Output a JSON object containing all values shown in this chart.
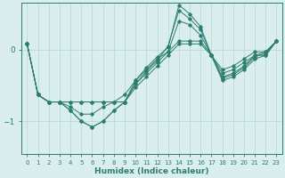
{
  "xlabel": "Humidex (Indice chaleur)",
  "ylabel": "",
  "background_color": "#daeeed",
  "line_color": "#2e7d70",
  "grid_color": "#b8dbd8",
  "xlim": [
    -0.5,
    23.5
  ],
  "ylim": [
    -1.45,
    0.65
  ],
  "yticks": [
    0,
    -1
  ],
  "xticks": [
    0,
    1,
    2,
    3,
    4,
    5,
    6,
    7,
    8,
    9,
    10,
    11,
    12,
    13,
    14,
    15,
    16,
    17,
    18,
    19,
    20,
    21,
    22,
    23
  ],
  "series": [
    {
      "x": [
        0,
        1,
        2,
        3,
        4,
        5,
        6,
        7,
        8,
        9,
        10,
        11,
        12,
        13,
        14,
        15,
        16,
        17,
        18,
        19,
        20,
        21,
        22,
        23
      ],
      "y": [
        0.08,
        -0.63,
        -0.73,
        -0.73,
        -0.73,
        -0.73,
        -0.73,
        -0.73,
        -0.73,
        -0.73,
        -0.53,
        -0.38,
        -0.23,
        -0.08,
        0.08,
        0.08,
        0.08,
        -0.08,
        -0.33,
        -0.28,
        -0.18,
        -0.08,
        -0.08,
        0.12
      ]
    },
    {
      "x": [
        0,
        1,
        2,
        3,
        4,
        5,
        6,
        7,
        8,
        9,
        10,
        11,
        12,
        13,
        14,
        15,
        16,
        17,
        18,
        19,
        20,
        21,
        22,
        23
      ],
      "y": [
        0.08,
        -0.63,
        -0.73,
        -0.73,
        -0.8,
        -0.9,
        -0.9,
        -0.8,
        -0.73,
        -0.63,
        -0.43,
        -0.28,
        -0.13,
        -0.03,
        0.4,
        0.35,
        0.2,
        -0.08,
        -0.38,
        -0.33,
        -0.23,
        -0.08,
        -0.03,
        0.12
      ]
    },
    {
      "x": [
        0,
        1,
        2,
        3,
        4,
        5,
        6,
        7,
        8,
        9,
        10,
        11,
        12,
        13,
        14,
        15,
        16,
        17,
        18,
        19,
        20,
        21,
        22,
        23
      ],
      "y": [
        0.08,
        -0.63,
        -0.73,
        -0.73,
        -0.85,
        -1.0,
        -1.08,
        -1.0,
        -0.85,
        -0.73,
        -0.43,
        -0.25,
        -0.1,
        0.03,
        0.62,
        0.5,
        0.32,
        -0.08,
        -0.43,
        -0.38,
        -0.28,
        -0.13,
        -0.08,
        0.12
      ]
    },
    {
      "x": [
        0,
        1,
        2,
        3,
        4,
        5,
        6,
        7,
        8,
        9,
        10,
        11,
        12,
        13,
        14,
        15,
        16,
        17,
        18,
        19,
        20,
        21,
        22,
        23
      ],
      "y": [
        0.08,
        -0.63,
        -0.73,
        -0.73,
        -0.85,
        -1.0,
        -1.08,
        -1.0,
        -0.85,
        -0.73,
        -0.48,
        -0.3,
        -0.15,
        0.05,
        0.55,
        0.43,
        0.28,
        -0.08,
        -0.4,
        -0.35,
        -0.25,
        -0.1,
        -0.05,
        0.12
      ]
    },
    {
      "x": [
        0,
        1,
        2,
        3,
        4,
        5,
        6,
        7,
        8,
        9,
        10,
        11,
        12,
        13,
        14,
        15,
        16,
        17,
        18,
        19,
        20,
        21,
        22,
        23
      ],
      "y": [
        0.08,
        -0.63,
        -0.73,
        -0.73,
        -0.73,
        -0.73,
        -0.73,
        -0.73,
        -0.73,
        -0.73,
        -0.48,
        -0.33,
        -0.18,
        -0.03,
        0.12,
        0.12,
        0.12,
        -0.08,
        -0.28,
        -0.23,
        -0.13,
        -0.03,
        -0.03,
        0.12
      ]
    }
  ]
}
